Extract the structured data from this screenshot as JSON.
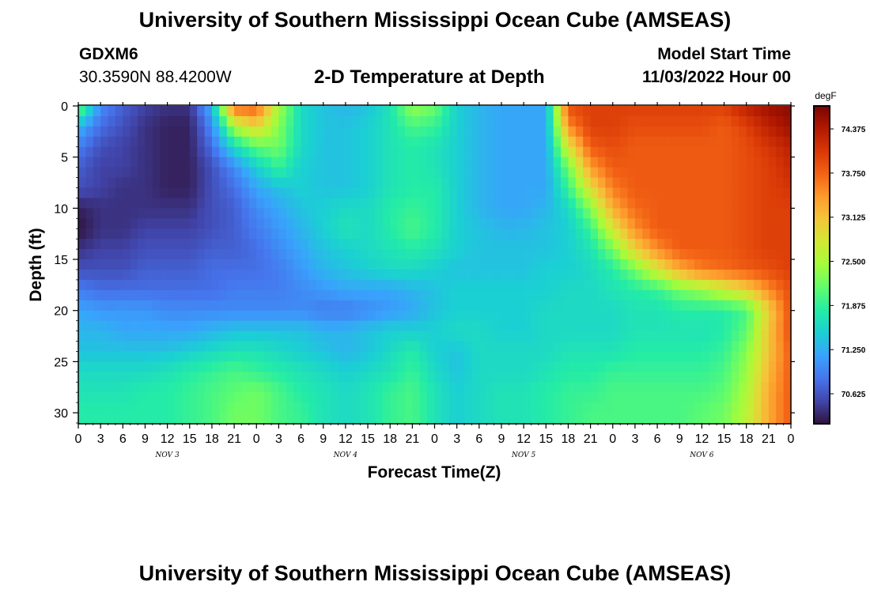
{
  "header": {
    "title": "University of Southern Mississippi Ocean Cube (AMSEAS)",
    "station_id": "GDXM6",
    "coordinates": "30.3590N  88.4200W",
    "plot_title": "2-D Temperature at Depth",
    "model_start_label": "Model Start Time",
    "model_start_value": "11/03/2022 Hour 00"
  },
  "footer": {
    "title": "University of Southern Mississippi Ocean Cube (AMSEAS)"
  },
  "colors": {
    "colormap": [
      "#30123b",
      "#4145ab",
      "#4675ed",
      "#39a2fc",
      "#1bcfd4",
      "#24eca6",
      "#61fc6c",
      "#a4fc3b",
      "#d1e834",
      "#f3c63a",
      "#fe9b2d",
      "#f36315",
      "#d93806",
      "#b11901",
      "#7a0402"
    ]
  },
  "chart_data": {
    "type": "heatmap",
    "xlabel": "Forecast Time(Z)",
    "ylabel": "Depth (ft)",
    "x_tick_labels": [
      "0",
      "3",
      "6",
      "9",
      "12",
      "15",
      "18",
      "21",
      "0",
      "3",
      "6",
      "9",
      "12",
      "15",
      "18",
      "21",
      "0",
      "3",
      "6",
      "9",
      "12",
      "15",
      "18",
      "21",
      "0",
      "3",
      "6",
      "9",
      "12",
      "15",
      "18",
      "21",
      "0"
    ],
    "day_labels": [
      "NOV 3",
      "NOV 4",
      "NOV 5",
      "NOV 6"
    ],
    "x_range_hours": [
      0,
      96
    ],
    "y_ticks": [
      0,
      5,
      10,
      15,
      20,
      25,
      30
    ],
    "ylim": [
      0,
      31
    ],
    "y_inverted": true,
    "colorbar": {
      "unit": "degF",
      "ticks": [
        "74.375",
        "73.750",
        "73.125",
        "72.500",
        "71.875",
        "71.250",
        "70.625"
      ],
      "range": [
        70.2,
        74.7
      ]
    },
    "depths": [
      0,
      2,
      4,
      6,
      8,
      10,
      12,
      14,
      16,
      18,
      20,
      22,
      24,
      26,
      28,
      30,
      31
    ],
    "hours": [
      0,
      3,
      6,
      9,
      12,
      15,
      18,
      21,
      24,
      27,
      30,
      33,
      36,
      39,
      42,
      45,
      48,
      51,
      54,
      57,
      60,
      63,
      66,
      69,
      72,
      75,
      78,
      81,
      84,
      87,
      90,
      93,
      96
    ],
    "values": [
      [
        72.3,
        71.0,
        70.7,
        70.5,
        70.4,
        70.4,
        71.3,
        73.8,
        73.8,
        72.5,
        71.6,
        71.4,
        71.3,
        71.4,
        71.7,
        72.4,
        72.2,
        71.5,
        71.3,
        71.2,
        71.2,
        71.2,
        73.9,
        74.0,
        74.0,
        74.0,
        74.0,
        74.0,
        74.0,
        74.0,
        74.3,
        74.5,
        74.6
      ],
      [
        71.3,
        70.8,
        70.6,
        70.4,
        70.3,
        70.3,
        71.0,
        72.5,
        73.0,
        72.3,
        71.6,
        71.4,
        71.4,
        71.5,
        71.7,
        72.0,
        71.9,
        71.5,
        71.3,
        71.2,
        71.2,
        71.2,
        73.5,
        74.0,
        74.0,
        73.9,
        73.9,
        73.9,
        73.9,
        73.8,
        74.0,
        74.3,
        74.5
      ],
      [
        70.9,
        70.6,
        70.5,
        70.4,
        70.3,
        70.3,
        70.8,
        71.6,
        72.1,
        72.2,
        71.6,
        71.4,
        71.4,
        71.5,
        71.7,
        71.8,
        71.7,
        71.5,
        71.3,
        71.2,
        71.2,
        71.2,
        72.8,
        73.8,
        73.9,
        73.8,
        73.8,
        73.8,
        73.8,
        73.8,
        73.9,
        74.1,
        74.3
      ],
      [
        70.7,
        70.5,
        70.5,
        70.4,
        70.3,
        70.3,
        70.6,
        71.0,
        71.5,
        71.9,
        71.5,
        71.4,
        71.4,
        71.5,
        71.7,
        71.8,
        71.7,
        71.5,
        71.3,
        71.2,
        71.2,
        71.2,
        72.2,
        73.4,
        73.8,
        73.8,
        73.8,
        73.8,
        73.8,
        73.8,
        73.9,
        74.0,
        74.2
      ],
      [
        70.6,
        70.5,
        70.4,
        70.4,
        70.3,
        70.3,
        70.6,
        70.8,
        71.2,
        71.4,
        71.5,
        71.4,
        71.4,
        71.5,
        71.7,
        71.8,
        71.8,
        71.5,
        71.3,
        71.2,
        71.2,
        71.2,
        71.9,
        72.9,
        73.6,
        73.8,
        73.8,
        73.8,
        73.8,
        73.8,
        73.9,
        74.0,
        74.1
      ],
      [
        70.3,
        70.4,
        70.4,
        70.4,
        70.4,
        70.4,
        70.6,
        70.7,
        71.0,
        71.2,
        71.4,
        71.5,
        71.6,
        71.6,
        71.8,
        71.9,
        71.8,
        71.5,
        71.3,
        71.2,
        71.2,
        71.3,
        71.6,
        72.3,
        73.3,
        73.7,
        73.8,
        73.8,
        73.8,
        73.8,
        73.9,
        74.0,
        74.0
      ],
      [
        70.2,
        70.4,
        70.4,
        70.5,
        70.5,
        70.5,
        70.6,
        70.7,
        70.9,
        71.1,
        71.3,
        71.5,
        71.7,
        71.6,
        71.8,
        72.0,
        71.8,
        71.5,
        71.4,
        71.3,
        71.3,
        71.4,
        71.5,
        71.9,
        72.8,
        73.5,
        73.8,
        73.8,
        73.8,
        73.8,
        73.9,
        74.0,
        74.0
      ],
      [
        70.4,
        70.5,
        70.5,
        70.6,
        70.6,
        70.6,
        70.7,
        70.7,
        70.8,
        71.0,
        71.2,
        71.4,
        71.5,
        71.6,
        71.7,
        71.8,
        71.7,
        71.5,
        71.4,
        71.4,
        71.4,
        71.4,
        71.5,
        71.7,
        72.2,
        73.0,
        73.5,
        73.8,
        73.8,
        73.8,
        73.9,
        74.0,
        74.0
      ],
      [
        70.6,
        70.6,
        70.6,
        70.7,
        70.7,
        70.7,
        70.8,
        70.8,
        70.8,
        70.9,
        71.1,
        71.3,
        71.4,
        71.5,
        71.6,
        71.6,
        71.5,
        71.4,
        71.4,
        71.4,
        71.4,
        71.5,
        71.5,
        71.6,
        71.8,
        72.2,
        72.8,
        73.3,
        73.6,
        73.7,
        73.8,
        73.9,
        74.0
      ],
      [
        70.9,
        70.8,
        70.8,
        70.8,
        70.8,
        70.8,
        70.8,
        70.9,
        70.9,
        70.9,
        71.0,
        71.1,
        71.2,
        71.2,
        71.2,
        71.3,
        71.4,
        71.5,
        71.5,
        71.5,
        71.5,
        71.5,
        71.6,
        71.6,
        71.7,
        71.8,
        71.9,
        72.2,
        72.4,
        72.7,
        73.0,
        73.5,
        73.9
      ],
      [
        71.2,
        71.1,
        71.1,
        71.1,
        71.0,
        71.0,
        71.0,
        71.0,
        71.0,
        71.0,
        71.0,
        70.9,
        70.9,
        71.0,
        71.1,
        71.2,
        71.4,
        71.5,
        71.5,
        71.5,
        71.5,
        71.6,
        71.6,
        71.6,
        71.6,
        71.7,
        71.7,
        71.8,
        71.8,
        71.8,
        72.0,
        73.0,
        73.9
      ],
      [
        71.3,
        71.3,
        71.2,
        71.2,
        71.2,
        71.2,
        71.3,
        71.4,
        71.4,
        71.4,
        71.4,
        71.3,
        71.3,
        71.4,
        71.5,
        71.5,
        71.5,
        71.6,
        71.6,
        71.5,
        71.5,
        71.6,
        71.6,
        71.6,
        71.6,
        71.7,
        71.7,
        71.7,
        71.7,
        71.8,
        72.1,
        73.1,
        73.9
      ],
      [
        71.4,
        71.4,
        71.4,
        71.4,
        71.4,
        71.5,
        71.6,
        71.7,
        71.7,
        71.6,
        71.5,
        71.4,
        71.3,
        71.4,
        71.6,
        71.8,
        71.5,
        71.4,
        71.6,
        71.6,
        71.6,
        71.6,
        71.7,
        71.7,
        71.7,
        71.8,
        71.8,
        71.8,
        71.8,
        71.9,
        72.3,
        73.1,
        73.8
      ],
      [
        71.6,
        71.6,
        71.6,
        71.6,
        71.7,
        71.8,
        71.9,
        72.0,
        71.9,
        71.8,
        71.7,
        71.6,
        71.5,
        71.6,
        71.7,
        71.9,
        71.6,
        71.4,
        71.6,
        71.6,
        71.6,
        71.7,
        71.8,
        71.8,
        71.9,
        71.9,
        71.9,
        71.9,
        71.9,
        72.0,
        72.4,
        73.2,
        73.8
      ],
      [
        71.7,
        71.7,
        71.7,
        71.8,
        71.8,
        71.9,
        72.0,
        72.1,
        72.2,
        72.0,
        71.8,
        71.7,
        71.6,
        71.7,
        71.9,
        72.0,
        71.7,
        71.5,
        71.6,
        71.7,
        71.7,
        71.8,
        71.9,
        71.9,
        72.0,
        72.0,
        72.0,
        72.0,
        72.0,
        72.1,
        72.5,
        73.3,
        73.8
      ],
      [
        71.8,
        71.8,
        71.8,
        71.8,
        71.8,
        71.9,
        72.0,
        72.2,
        72.2,
        72.0,
        71.9,
        71.7,
        71.6,
        71.7,
        71.9,
        72.0,
        71.7,
        71.5,
        71.6,
        71.7,
        71.7,
        71.8,
        71.9,
        72.0,
        72.0,
        72.0,
        72.0,
        72.0,
        72.1,
        72.2,
        72.6,
        73.3,
        73.8
      ],
      [
        71.8,
        71.8,
        71.8,
        71.8,
        71.8,
        71.9,
        72.0,
        72.2,
        72.2,
        72.0,
        71.9,
        71.7,
        71.6,
        71.7,
        71.9,
        72.0,
        71.7,
        71.5,
        71.6,
        71.7,
        71.7,
        71.8,
        71.9,
        72.0,
        72.0,
        72.0,
        72.0,
        72.0,
        72.1,
        72.2,
        72.6,
        73.3,
        73.8
      ]
    ]
  }
}
